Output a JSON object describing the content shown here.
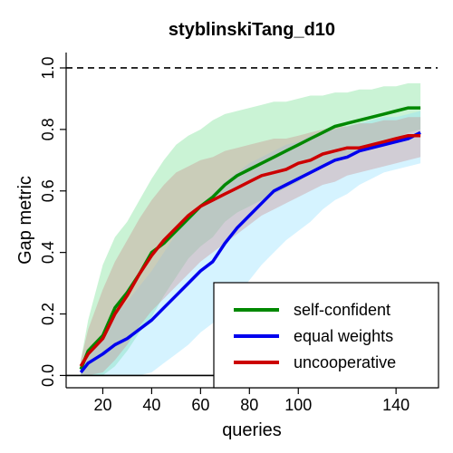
{
  "chart_data": {
    "type": "line",
    "title": "styblinskiTang_d10",
    "xlabel": "queries",
    "ylabel": "Gap metric",
    "xlim": [
      5,
      157
    ],
    "ylim": [
      -0.04,
      1.05
    ],
    "x_ticks": [
      20,
      40,
      60,
      80,
      100,
      140
    ],
    "y_ticks": [
      0.0,
      0.2,
      0.4,
      0.6,
      0.8,
      1.0
    ],
    "y_tick_labels": [
      "0.0",
      "0.2",
      "0.4",
      "0.6",
      "0.8",
      "1.0"
    ],
    "reference_lines": [
      {
        "y": 1.0,
        "style": "dashed",
        "color": "#000000"
      },
      {
        "y": 0.0,
        "style": "solid",
        "color": "#000000"
      }
    ],
    "legend": {
      "position": "bottom-right"
    },
    "series": [
      {
        "name": "self-confident",
        "color": "#008800",
        "band_color": "#66dd88",
        "x": [
          11,
          14,
          20,
          25,
          30,
          35,
          40,
          45,
          50,
          55,
          60,
          65,
          70,
          75,
          80,
          85,
          90,
          95,
          100,
          105,
          110,
          115,
          120,
          125,
          130,
          135,
          140,
          145,
          150
        ],
        "y": [
          0.02,
          0.08,
          0.13,
          0.22,
          0.27,
          0.33,
          0.4,
          0.43,
          0.47,
          0.51,
          0.55,
          0.58,
          0.62,
          0.65,
          0.67,
          0.69,
          0.71,
          0.73,
          0.75,
          0.77,
          0.79,
          0.81,
          0.82,
          0.83,
          0.84,
          0.85,
          0.86,
          0.87,
          0.87
        ],
        "lower": [
          0.0,
          0.0,
          0.0,
          0.03,
          0.08,
          0.14,
          0.19,
          0.26,
          0.32,
          0.38,
          0.42,
          0.45,
          0.5,
          0.53,
          0.55,
          0.57,
          0.59,
          0.61,
          0.63,
          0.66,
          0.68,
          0.7,
          0.71,
          0.73,
          0.74,
          0.76,
          0.77,
          0.79,
          0.8
        ],
        "upper": [
          0.05,
          0.18,
          0.36,
          0.45,
          0.5,
          0.57,
          0.64,
          0.7,
          0.75,
          0.78,
          0.8,
          0.83,
          0.85,
          0.86,
          0.87,
          0.88,
          0.89,
          0.89,
          0.9,
          0.91,
          0.91,
          0.92,
          0.92,
          0.93,
          0.93,
          0.94,
          0.94,
          0.95,
          0.95
        ]
      },
      {
        "name": "equal weights",
        "color": "#0000ee",
        "band_color": "#88ddff",
        "x": [
          11,
          14,
          20,
          25,
          30,
          35,
          40,
          45,
          50,
          55,
          60,
          65,
          70,
          75,
          80,
          85,
          90,
          95,
          100,
          105,
          110,
          115,
          120,
          125,
          130,
          135,
          140,
          145,
          150
        ],
        "y": [
          0.01,
          0.04,
          0.07,
          0.1,
          0.12,
          0.15,
          0.18,
          0.22,
          0.26,
          0.3,
          0.34,
          0.37,
          0.43,
          0.48,
          0.52,
          0.56,
          0.6,
          0.62,
          0.64,
          0.66,
          0.68,
          0.7,
          0.71,
          0.73,
          0.74,
          0.75,
          0.76,
          0.77,
          0.79
        ],
        "lower": [
          0.0,
          0.0,
          0.0,
          0.0,
          0.0,
          0.0,
          0.01,
          0.04,
          0.07,
          0.1,
          0.14,
          0.17,
          0.21,
          0.26,
          0.31,
          0.36,
          0.4,
          0.44,
          0.47,
          0.5,
          0.54,
          0.57,
          0.59,
          0.62,
          0.64,
          0.66,
          0.67,
          0.68,
          0.69
        ],
        "upper": [
          0.03,
          0.08,
          0.14,
          0.2,
          0.24,
          0.29,
          0.34,
          0.4,
          0.46,
          0.51,
          0.55,
          0.59,
          0.63,
          0.66,
          0.69,
          0.71,
          0.73,
          0.75,
          0.76,
          0.78,
          0.79,
          0.8,
          0.81,
          0.82,
          0.83,
          0.84,
          0.84,
          0.85,
          0.86
        ]
      },
      {
        "name": "uncooperative",
        "color": "#cc0000",
        "band_color": "#cc8888",
        "x": [
          11,
          14,
          20,
          25,
          30,
          35,
          40,
          45,
          50,
          55,
          60,
          65,
          70,
          75,
          80,
          85,
          90,
          95,
          100,
          105,
          110,
          115,
          120,
          125,
          130,
          135,
          140,
          145,
          150
        ],
        "y": [
          0.03,
          0.07,
          0.12,
          0.2,
          0.26,
          0.33,
          0.39,
          0.44,
          0.48,
          0.52,
          0.55,
          0.57,
          0.59,
          0.61,
          0.63,
          0.65,
          0.66,
          0.67,
          0.69,
          0.7,
          0.72,
          0.73,
          0.74,
          0.74,
          0.75,
          0.76,
          0.77,
          0.78,
          0.78
        ],
        "lower": [
          0.0,
          0.0,
          0.01,
          0.05,
          0.1,
          0.16,
          0.21,
          0.25,
          0.29,
          0.33,
          0.37,
          0.4,
          0.43,
          0.46,
          0.49,
          0.52,
          0.54,
          0.56,
          0.58,
          0.6,
          0.62,
          0.63,
          0.65,
          0.66,
          0.67,
          0.68,
          0.69,
          0.7,
          0.71
        ],
        "upper": [
          0.05,
          0.15,
          0.28,
          0.37,
          0.44,
          0.51,
          0.57,
          0.62,
          0.66,
          0.68,
          0.7,
          0.71,
          0.73,
          0.74,
          0.75,
          0.76,
          0.77,
          0.77,
          0.78,
          0.79,
          0.8,
          0.81,
          0.81,
          0.82,
          0.82,
          0.83,
          0.83,
          0.84,
          0.84
        ]
      }
    ]
  }
}
